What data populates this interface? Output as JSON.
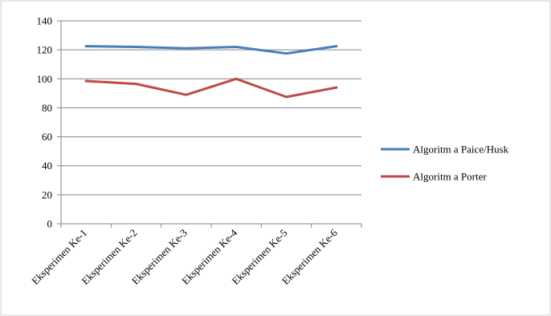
{
  "chart_data": {
    "type": "line",
    "categories": [
      "Eksperimen Ke-1",
      "Eksperimen Ke-2",
      "Eksperimen Ke-3",
      "Eksperimen Ke-4",
      "Eksperimen Ke-5",
      "Eksperimen Ke-6"
    ],
    "series": [
      {
        "name": "Algoritm a Paice/Husk",
        "color": "#4a7ebb",
        "values": [
          122.5,
          122,
          121,
          122,
          117.5,
          122.5
        ]
      },
      {
        "name": "Algoritm a Porter",
        "color": "#be4b48",
        "values": [
          98.5,
          96.5,
          89,
          100,
          87.5,
          94
        ]
      }
    ],
    "ylim": [
      0,
      140
    ],
    "yticks": [
      0,
      20,
      40,
      60,
      80,
      100,
      120,
      140
    ],
    "grid": true,
    "legend_position": "right",
    "title": "",
    "xlabel": "",
    "ylabel": ""
  }
}
